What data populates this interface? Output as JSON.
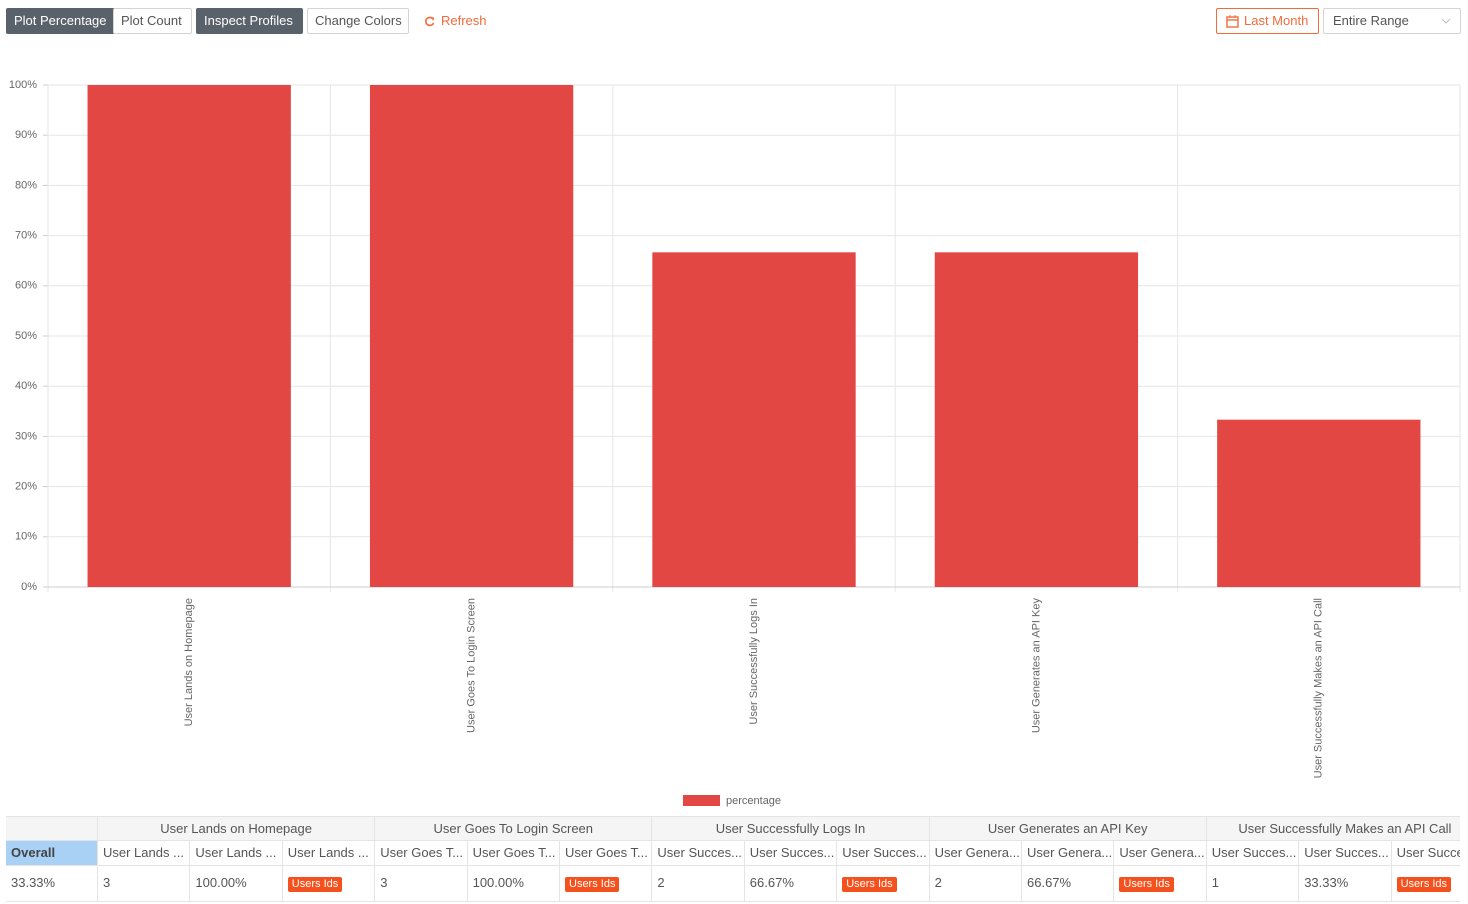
{
  "toolbar": {
    "buttons": [
      "Plot Percentage",
      "Plot Count",
      "Inspect Profiles",
      "Change Colors"
    ],
    "refresh": "Refresh",
    "date_button": "Last Month",
    "range_select": "Entire Range"
  },
  "chart_data": {
    "type": "bar",
    "categories": [
      "User Lands on Homepage",
      "User Goes To Login Screen",
      "User Successfully Logs In",
      "User Generates an API Key",
      "User Successfully Makes an API Call"
    ],
    "series": [
      {
        "name": "percentage",
        "color": "#e34744",
        "values": [
          100,
          100,
          66.67,
          66.67,
          33.33
        ]
      }
    ],
    "ylim": [
      0,
      100
    ],
    "yticks": [
      {
        "value": 0,
        "label": "0%"
      },
      {
        "value": 10,
        "label": "10%"
      },
      {
        "value": 20,
        "label": "20%"
      },
      {
        "value": 30,
        "label": "30%"
      },
      {
        "value": 40,
        "label": "40%"
      },
      {
        "value": 50,
        "label": "50%"
      },
      {
        "value": 60,
        "label": "60%"
      },
      {
        "value": 70,
        "label": "70%"
      },
      {
        "value": 80,
        "label": "80%"
      },
      {
        "value": 90,
        "label": "90%"
      },
      {
        "value": 100,
        "label": "100%"
      }
    ],
    "grid": true,
    "legend": "bottom"
  },
  "table": {
    "groups": [
      "User Lands on Homepage",
      "User Goes To Login Screen",
      "User Successfully Logs In",
      "User Generates an API Key",
      "User Successfully Makes an API Call"
    ],
    "subheaders": [
      "Overall",
      "User Lands ...",
      "User Lands ...",
      "User Lands ...",
      "User Goes T...",
      "User Goes T...",
      "User Goes T...",
      "User Succes...",
      "User Succes...",
      "User Succes...",
      "User Genera...",
      "User Genera...",
      "User Genera...",
      "User Succes...",
      "User Succes...",
      "User Succe"
    ],
    "rows": [
      [
        "33.33%",
        "3",
        "100.00%",
        "Users Ids",
        "3",
        "100.00%",
        "Users Ids",
        "2",
        "66.67%",
        "Users Ids",
        "2",
        "66.67%",
        "Users Ids",
        "1",
        "33.33%",
        "Users Ids"
      ]
    ]
  }
}
